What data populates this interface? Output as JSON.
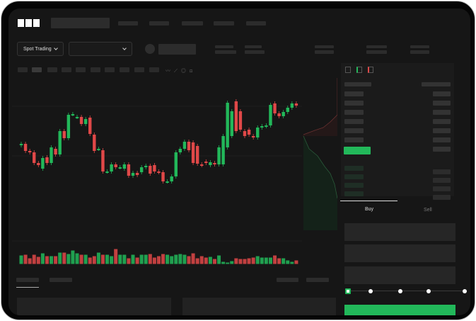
{
  "brand": {
    "logo": "OKX"
  },
  "toolbar": {
    "market_selector": "Spot Trading",
    "pair_selector": ""
  },
  "trade": {
    "tabs": [
      {
        "label": "Buy",
        "active": true
      },
      {
        "label": "Sell",
        "active": false
      }
    ],
    "slider_percent": 0,
    "slider_marks": 5
  },
  "colors": {
    "up": "#22b85a",
    "down": "#e04848",
    "background": "#161616"
  },
  "icons": [
    "chevron-down-icon",
    "orderbook-both-icon",
    "orderbook-bids-icon",
    "orderbook-asks-icon",
    "indicator-icon",
    "draw-icon",
    "settings-icon",
    "fullscreen-icon"
  ],
  "chart_data": {
    "type": "candlestick",
    "open": [
      95,
      97,
      87,
      85,
      70,
      62,
      78,
      70,
      90,
      82,
      115,
      105,
      139,
      135,
      135,
      125,
      134,
      110,
      90,
      88,
      58,
      58,
      68,
      64,
      62,
      68,
      52,
      56,
      57,
      64,
      66,
      67,
      58,
      57,
      44,
      44,
      51,
      85,
      90,
      100,
      99,
      94,
      68,
      72,
      67,
      70,
      68,
      68,
      92,
      108,
      157,
      143,
      115,
      117,
      108,
      106,
      120,
      122,
      123,
      154,
      140,
      136,
      142,
      148,
      154
    ],
    "close": [
      97,
      87,
      85,
      70,
      67,
      77,
      70,
      92,
      82,
      115,
      105,
      138,
      139,
      135,
      125,
      132,
      111,
      87,
      90,
      58,
      58,
      68,
      64,
      64,
      68,
      52,
      56,
      53,
      64,
      66,
      55,
      58,
      57,
      44,
      44,
      51,
      85,
      90,
      100,
      88,
      70,
      69,
      67,
      70,
      71,
      68,
      92,
      108,
      155,
      143,
      115,
      117,
      108,
      110,
      106,
      120,
      122,
      123,
      152,
      140,
      136,
      142,
      148,
      154,
      151
    ],
    "volume": [
      12,
      13,
      8,
      13,
      10,
      15,
      11,
      11,
      11,
      16,
      16,
      14,
      19,
      15,
      13,
      13,
      9,
      11,
      16,
      13,
      13,
      11,
      21,
      13,
      13,
      8,
      13,
      9,
      13,
      13,
      14,
      9,
      11,
      14,
      13,
      11,
      13,
      14,
      13,
      11,
      15,
      8,
      11,
      9,
      10,
      7,
      12,
      3,
      2,
      4,
      8,
      7,
      7,
      8,
      9,
      11,
      9,
      9,
      9,
      12,
      8,
      8,
      5,
      3,
      5
    ]
  }
}
